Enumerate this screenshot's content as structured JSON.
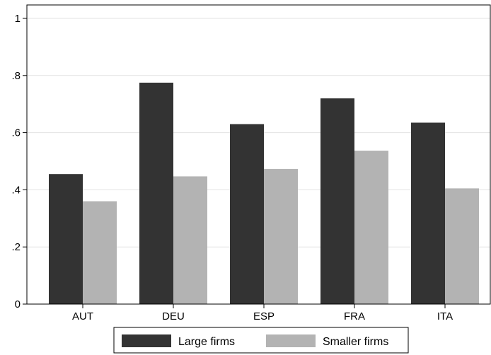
{
  "chart_data": {
    "type": "bar",
    "categories": [
      "AUT",
      "DEU",
      "ESP",
      "FRA",
      "ITA"
    ],
    "series": [
      {
        "name": "Large firms",
        "values": [
          0.455,
          0.775,
          0.63,
          0.72,
          0.635
        ],
        "color": "#333333"
      },
      {
        "name": "Smaller firms",
        "values": [
          0.36,
          0.447,
          0.473,
          0.537,
          0.405
        ],
        "color": "#b3b3b3"
      }
    ],
    "title": "",
    "xlabel": "",
    "ylabel": "",
    "ylim": [
      0,
      1
    ],
    "yticks": [
      0,
      0.2,
      0.4,
      0.6,
      0.8,
      1
    ],
    "ytick_labels": [
      "0",
      ".2",
      ".4",
      ".6",
      ".8",
      "1"
    ],
    "grid": true,
    "legend_position": "bottom"
  }
}
